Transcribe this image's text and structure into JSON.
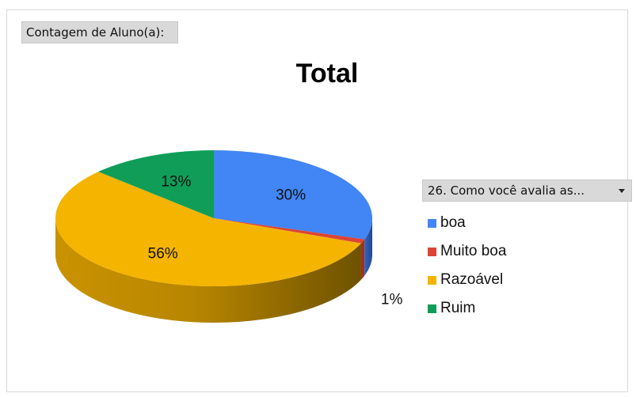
{
  "field_button": {
    "label": "Contagem de Aluno(a):"
  },
  "legend_filter": {
    "label": "26.  Como você avalia as..."
  },
  "colors": {
    "boa": "#4285F4",
    "muito_boa": "#DB4437",
    "razoavel": "#F4B400",
    "ruim": "#0F9D58"
  },
  "chart_data": {
    "type": "pie",
    "title": "Total",
    "legend_position": "right",
    "slices": [
      {
        "label": "boa",
        "value": 30,
        "display": "30%",
        "color": "#4285F4"
      },
      {
        "label": "Muito boa",
        "value": 1,
        "display": "1%",
        "color": "#DB4437"
      },
      {
        "label": "Razoável",
        "value": 56,
        "display": "56%",
        "color": "#F4B400"
      },
      {
        "label": "Ruim",
        "value": 13,
        "display": "13%",
        "color": "#0F9D58"
      }
    ]
  }
}
